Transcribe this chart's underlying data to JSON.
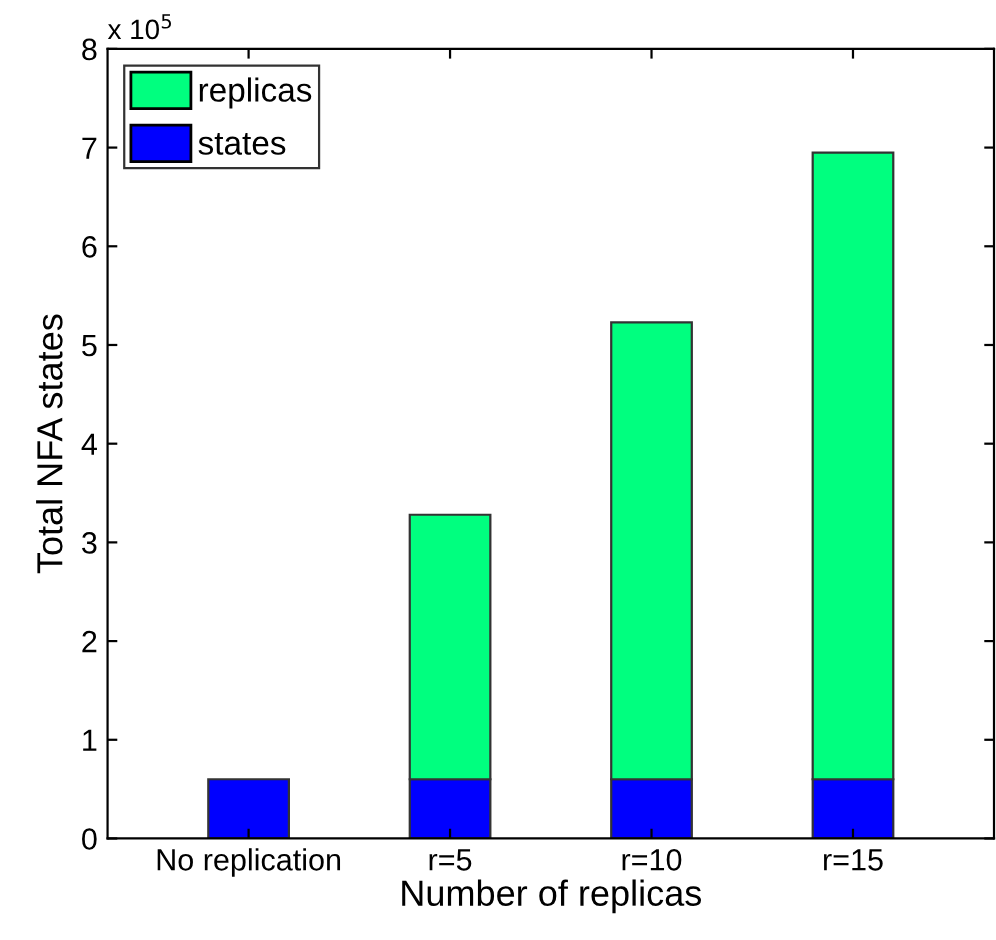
{
  "chart_data": {
    "type": "bar",
    "stacked": true,
    "xlabel": "Number of replicas",
    "ylabel": "Total NFA states",
    "categories": [
      "No replication",
      "r=5",
      "r=10",
      "r=15"
    ],
    "series": [
      {
        "name": "states",
        "color": "#0000ff",
        "values": [
          0.6,
          0.6,
          0.6,
          0.6
        ]
      },
      {
        "name": "replicas",
        "color": "#00ff7f",
        "values": [
          null,
          2.68,
          4.63,
          6.35
        ]
      }
    ],
    "ylim": [
      0,
      8
    ],
    "yticks": [
      0,
      1,
      2,
      3,
      4,
      5,
      6,
      7,
      8
    ],
    "annotations": [
      "x 10$^{5}$"
    ],
    "legend": "top left",
    "grid": false
  }
}
